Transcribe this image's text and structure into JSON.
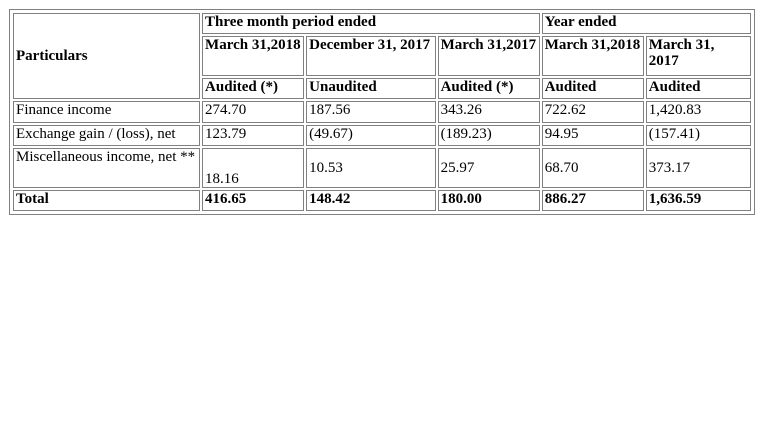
{
  "table": {
    "particulars_header": "Particulars",
    "group_headers": {
      "three_month": "Three month period ended",
      "year": "Year ended"
    },
    "columns": [
      {
        "date": "March 31,2018",
        "status": "Audited (*)"
      },
      {
        "date": "December 31, 2017",
        "status": "Unaudited"
      },
      {
        "date": "March 31,2017",
        "status": "Audited (*)"
      },
      {
        "date": "March 31,2018",
        "status": "Audited"
      },
      {
        "date": "March 31, 2017",
        "status": "Audited"
      }
    ],
    "rows": [
      {
        "label": "Finance income",
        "values": [
          "274.70",
          "187.56",
          "343.26",
          "722.62",
          "1,420.83"
        ]
      },
      {
        "label": "Exchange gain / (loss), net",
        "values": [
          "123.79",
          "(49.67)",
          "(189.23)",
          "94.95",
          "(157.41)"
        ]
      },
      {
        "label": "Miscellaneous income, net **",
        "values": [
          "18.16",
          "10.53",
          "25.97",
          "68.70",
          "373.17"
        ]
      },
      {
        "label": "Total",
        "values": [
          "416.65",
          "148.42",
          "180.00",
          "886.27",
          "1,636.59"
        ]
      }
    ]
  }
}
